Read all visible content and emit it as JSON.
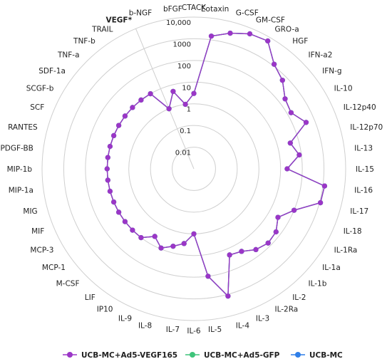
{
  "chart_data": {
    "type": "radar",
    "scale": "log",
    "rmin": 0.001,
    "rmax": 10000,
    "rings": [
      {
        "value": 0.01,
        "label": "0.01"
      },
      {
        "value": 0.1,
        "label": "0.1"
      },
      {
        "value": 1,
        "label": "1"
      },
      {
        "value": 10,
        "label": "10"
      },
      {
        "value": 100,
        "label": "100"
      },
      {
        "value": 1000,
        "label": "1000"
      },
      {
        "value": 10000,
        "label": "10,000"
      }
    ],
    "categories": [
      "CTACK",
      "Eotaxin",
      "G-CSF",
      "GM-CSF",
      "GRO-a",
      "HGF",
      "IFN-a2",
      "IFN-g",
      "IL-10",
      "IL-12p40",
      "IL-12p70",
      "IL-13",
      "IL-15",
      "IL-16",
      "IL-17",
      "IL-18",
      "IL-1Ra",
      "IL-1a",
      "IL-1b",
      "IL-2",
      "IL-2Ra",
      "IL-3",
      "IL-4",
      "IL-5",
      "IL-6",
      "IL-7",
      "IL-8",
      "IL-9",
      "IP10",
      "LIF",
      "M-CSF",
      "MCP-1",
      "MCP-3",
      "MIF",
      "MIG",
      "MIP-1a",
      "MIP-1b",
      "PDGF-BB",
      "RANTES",
      "SCF",
      "SCGF-b",
      "SDF-1a",
      "TNF-a",
      "TNF-b",
      "TRAIL",
      "VEGF*",
      "b-NGF",
      "bFGF"
    ],
    "highlight_category": "VEGF*",
    "series": [
      {
        "name": "UCB-MC+Ad5-VEGF165",
        "color": "#9b36c7",
        "values": [
          3,
          1500,
          3000,
          5500,
          6500,
          1200,
          600,
          200,
          150,
          400,
          40,
          80,
          20,
          1200,
          1100,
          100,
          30,
          60,
          70,
          50,
          25,
          20,
          1200,
          100,
          1,
          3,
          5,
          9,
          4,
          10,
          10,
          10,
          10,
          10,
          10,
          10,
          10,
          10,
          10,
          10,
          10,
          10,
          10,
          10,
          10,
          1,
          5,
          1
        ]
      },
      {
        "name": "UCB-MC+Ad5-GFP",
        "color": "#3ec47a",
        "values": [
          3,
          1500,
          3000,
          5500,
          6500,
          1200,
          600,
          200,
          150,
          400,
          40,
          80,
          20,
          1200,
          1100,
          100,
          30,
          60,
          70,
          50,
          25,
          20,
          1200,
          100,
          1,
          3,
          5,
          9,
          4,
          10,
          10,
          10,
          10,
          10,
          10,
          10,
          10,
          10,
          10,
          10,
          10,
          10,
          10,
          10,
          10,
          1,
          5,
          1
        ]
      },
      {
        "name": "UCB-MC",
        "color": "#2f7fe8",
        "values": [
          3,
          1500,
          3000,
          5500,
          6500,
          1200,
          600,
          200,
          150,
          400,
          40,
          80,
          20,
          1200,
          1100,
          100,
          30,
          60,
          70,
          50,
          25,
          20,
          1200,
          100,
          1,
          3,
          5,
          9,
          4,
          10,
          10,
          10,
          10,
          10,
          10,
          10,
          10,
          10,
          10,
          10,
          10,
          10,
          10,
          10,
          10,
          1,
          5,
          1
        ]
      }
    ],
    "grid": true,
    "legend_position": "bottom"
  }
}
